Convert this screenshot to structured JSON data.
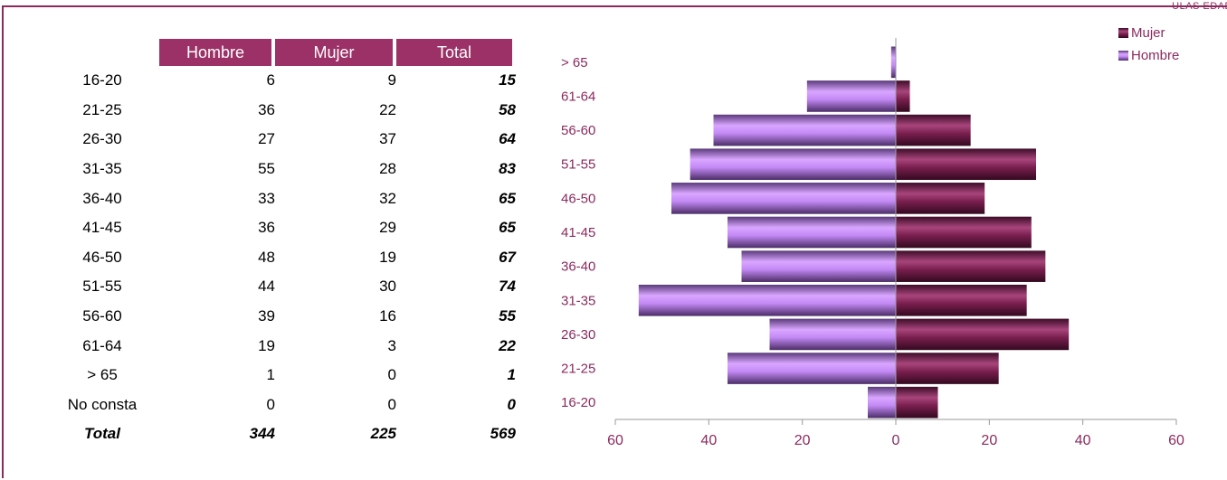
{
  "corner_text": "ULAS EDAD",
  "table": {
    "headers": [
      "Hombre",
      "Mujer",
      "Total"
    ],
    "rows": [
      {
        "label": "16-20",
        "hombre": "6",
        "mujer": "9",
        "total": "15"
      },
      {
        "label": "21-25",
        "hombre": "36",
        "mujer": "22",
        "total": "58"
      },
      {
        "label": "26-30",
        "hombre": "27",
        "mujer": "37",
        "total": "64"
      },
      {
        "label": "31-35",
        "hombre": "55",
        "mujer": "28",
        "total": "83"
      },
      {
        "label": "36-40",
        "hombre": "33",
        "mujer": "32",
        "total": "65"
      },
      {
        "label": "41-45",
        "hombre": "36",
        "mujer": "29",
        "total": "65"
      },
      {
        "label": "46-50",
        "hombre": "48",
        "mujer": "19",
        "total": "67"
      },
      {
        "label": "51-55",
        "hombre": "44",
        "mujer": "30",
        "total": "74"
      },
      {
        "label": "56-60",
        "hombre": "39",
        "mujer": "16",
        "total": "55"
      },
      {
        "label": "61-64",
        "hombre": "19",
        "mujer": "3",
        "total": "22"
      },
      {
        "label": "> 65",
        "hombre": "1",
        "mujer": "0",
        "total": "1"
      },
      {
        "label": "No consta",
        "hombre": "0",
        "mujer": "0",
        "total": "0"
      }
    ],
    "total_row": {
      "label": "Total",
      "hombre": "344",
      "mujer": "225",
      "total": "569"
    }
  },
  "chart_data": {
    "type": "bar",
    "orientation": "horizontal-pyramid",
    "categories": [
      "16-20",
      "21-25",
      "26-30",
      "31-35",
      "36-40",
      "41-45",
      "46-50",
      "51-55",
      "56-60",
      "61-64",
      "> 65"
    ],
    "series": [
      {
        "name": "Hombre",
        "values": [
          6,
          36,
          27,
          55,
          33,
          36,
          48,
          44,
          39,
          19,
          1
        ],
        "color": "#c98cff"
      },
      {
        "name": "Mujer",
        "values": [
          9,
          22,
          37,
          28,
          32,
          29,
          19,
          30,
          16,
          3,
          0
        ],
        "color": "#7a1f4f"
      }
    ],
    "xticks": [
      "60",
      "40",
      "20",
      "0",
      "20",
      "40",
      "60"
    ],
    "xlim": [
      -60,
      60
    ],
    "legend": {
      "position": "top-right",
      "entries": [
        "Mujer",
        "Hombre"
      ]
    },
    "label_color": "#8b2a5e"
  }
}
